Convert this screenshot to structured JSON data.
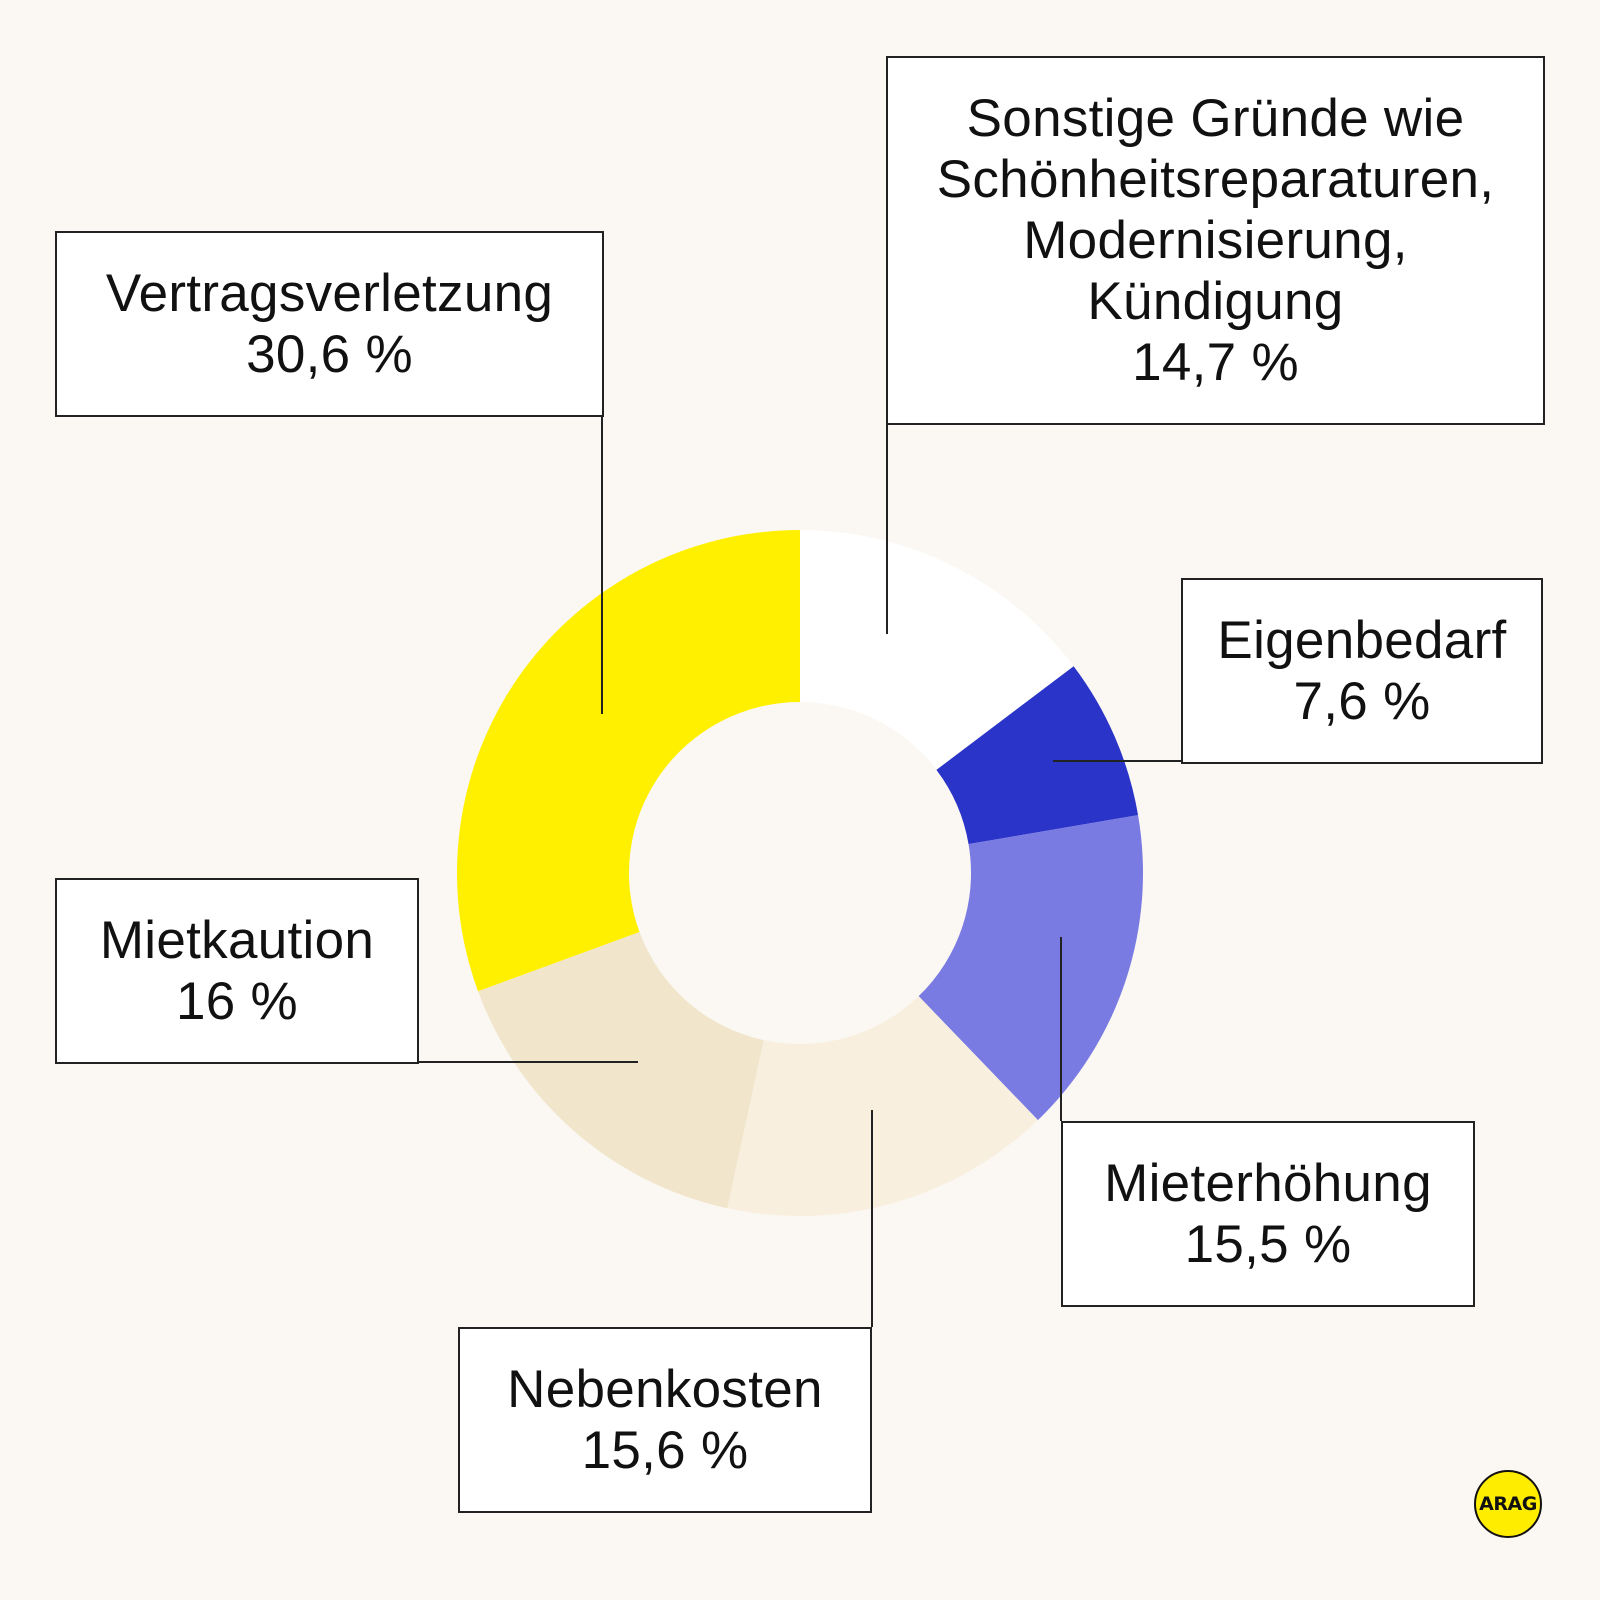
{
  "chart_data": {
    "type": "pie",
    "title": "",
    "donut": true,
    "slices": [
      {
        "label": "Sonstige Gründe wie Schönheitsreparaturen, Modernisierung, Kündigung",
        "value": 14.7,
        "value_label": "14,7 %",
        "color": "#ffffff"
      },
      {
        "label": "Eigenbedarf",
        "value": 7.6,
        "value_label": "7,6 %",
        "color": "#2a34c8"
      },
      {
        "label": "Mieterhöhung",
        "value": 15.5,
        "value_label": "15,5 %",
        "color": "#7a7be2"
      },
      {
        "label": "Nebenkosten",
        "value": 15.6,
        "value_label": "15,6 %",
        "color": "#f8efdf"
      },
      {
        "label": "Mietkaution",
        "value": 16,
        "value_label": "16 %",
        "color": "#f1e6cb"
      },
      {
        "label": "Vertragsverletzung",
        "value": 30.6,
        "value_label": "30,6 %",
        "color": "#fff000"
      }
    ]
  },
  "labels": {
    "vertrag": {
      "name": "Vertragsverletzung",
      "value": "30,6 %"
    },
    "sonstige": {
      "line1": "Sonstige Gründe wie",
      "line2": "Schönheitsreparaturen,",
      "line3": "Modernisierung,",
      "line4": "Kündigung",
      "value": "14,7 %"
    },
    "eigen": {
      "name": "Eigenbedarf",
      "value": "7,6 %"
    },
    "miet": {
      "name": "Mietkaution",
      "value": "16 %"
    },
    "erh": {
      "name": "Mieterhöhung",
      "value": "15,5 %"
    },
    "neben": {
      "name": "Nebenkosten",
      "value": "15,6 %"
    }
  },
  "logo": {
    "text": "ARAG",
    "color": "#ffed00"
  }
}
